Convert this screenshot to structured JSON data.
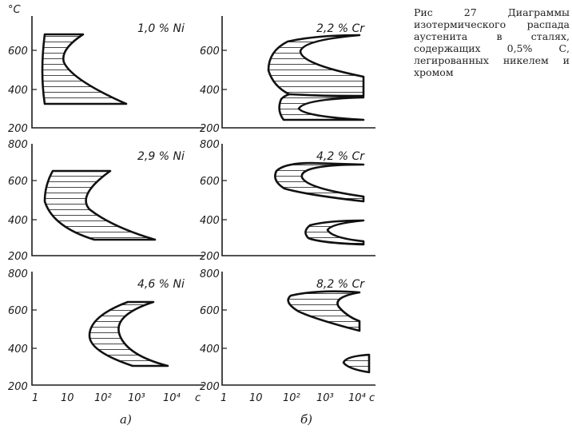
{
  "caption": "Рис 27 Диаграммы изотермического распада аустенита в сталях, содержащих 0,5% С, легированных никелем и хромом",
  "axes": {
    "y_unit": "°C",
    "y_ticks": [
      "200",
      "400",
      "600",
      "800"
    ],
    "x_ticks": [
      "1",
      "10",
      "10²",
      "10³",
      "10⁴"
    ],
    "x_unit": "с"
  },
  "column_labels": [
    "а)",
    "б)"
  ],
  "panels": [
    {
      "title": "1,0 % Ni"
    },
    {
      "title": "2,2 % Cr"
    },
    {
      "title": "2,9 % Ni"
    },
    {
      "title": "4,2 % Cr"
    },
    {
      "title": "4,6 % Ni"
    },
    {
      "title": "8,2 % Cr"
    }
  ]
}
